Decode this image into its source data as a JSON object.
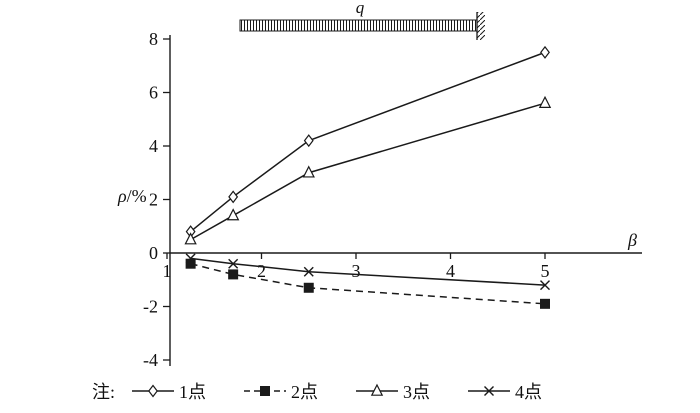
{
  "figure": {
    "note_label": "注:",
    "load_label": "q"
  },
  "colors": {
    "line": "#1a1a1a",
    "background": "#ffffff",
    "marker_fill": "#ffffff"
  },
  "chart_data": {
    "type": "line",
    "title": "",
    "xlabel": "β",
    "ylabel": "ρ/%",
    "xlim": [
      1,
      5
    ],
    "ylim": [
      -4,
      8
    ],
    "x_ticks": [
      1,
      2,
      3,
      4,
      5
    ],
    "y_ticks": [
      -4,
      -2,
      0,
      2,
      4,
      6,
      8
    ],
    "grid": false,
    "legend_position": "bottom",
    "legend_prefix": "注:",
    "x": [
      1.25,
      1.7,
      2.5,
      5
    ],
    "series": [
      {
        "name": "1点",
        "marker": "diamond",
        "line": "solid",
        "values": [
          0.8,
          2.1,
          4.2,
          7.5
        ]
      },
      {
        "name": "2点",
        "marker": "square",
        "line": "dashed",
        "values": [
          -0.4,
          -0.8,
          -1.3,
          -1.9
        ]
      },
      {
        "name": "3点",
        "marker": "triangle",
        "line": "solid",
        "values": [
          0.5,
          1.4,
          3.0,
          5.6
        ]
      },
      {
        "name": "4点",
        "marker": "x",
        "line": "solid",
        "values": [
          -0.2,
          -0.4,
          -0.7,
          -1.2
        ]
      }
    ],
    "annotations": [
      {
        "text": "q",
        "role": "distributed-load-label"
      }
    ]
  }
}
